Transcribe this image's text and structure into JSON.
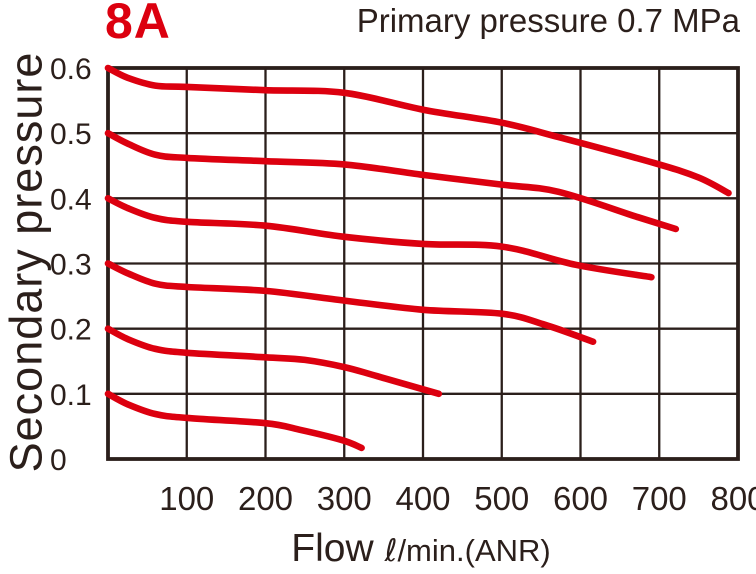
{
  "colors": {
    "ink": "#2b1f1b",
    "red": "#dc000f",
    "background": "#ffffff"
  },
  "chart_data": {
    "type": "line",
    "corner_label": "8A",
    "title": "Primary pressure 0.7 MPa",
    "ylabel": "Secondary pressure",
    "xlabel": {
      "main": "Flow",
      "symbol": "ℓ",
      "unit": "/min.(ANR)"
    },
    "xlim": [
      0,
      800
    ],
    "ylim": [
      0,
      0.6
    ],
    "grid": true,
    "legend": "none",
    "x_ticks": [
      100,
      200,
      300,
      400,
      500,
      600,
      700,
      800
    ],
    "x_tick_labels": [
      "100",
      "200",
      "300",
      "400",
      "500",
      "600",
      "700",
      "800"
    ],
    "y_ticks": [
      0.6,
      0.5,
      0.4,
      0.3,
      0.2,
      0.1,
      0
    ],
    "y_tick_labels": [
      "0.6",
      "0.5",
      "0.4",
      "0.3",
      "0.2",
      "0.1",
      "0"
    ],
    "curve_color": "#dc000f",
    "grid_color": "#2b1f1b",
    "series": [
      {
        "set": "0.6",
        "name": "set-pressure-0.6",
        "points": [
          [
            0,
            0.6
          ],
          [
            25,
            0.585
          ],
          [
            60,
            0.573
          ],
          [
            100,
            0.571
          ],
          [
            200,
            0.566
          ],
          [
            300,
            0.562
          ],
          [
            400,
            0.536
          ],
          [
            500,
            0.516
          ],
          [
            572,
            0.494
          ],
          [
            694,
            0.454
          ],
          [
            750,
            0.432
          ],
          [
            788,
            0.408
          ]
        ]
      },
      {
        "set": "0.5",
        "name": "set-pressure-0.5",
        "points": [
          [
            0,
            0.5
          ],
          [
            25,
            0.484
          ],
          [
            60,
            0.467
          ],
          [
            100,
            0.462
          ],
          [
            200,
            0.457
          ],
          [
            300,
            0.452
          ],
          [
            400,
            0.436
          ],
          [
            500,
            0.421
          ],
          [
            572,
            0.41
          ],
          [
            673,
            0.371
          ],
          [
            721,
            0.353
          ]
        ]
      },
      {
        "set": "0.4",
        "name": "set-pressure-0.4",
        "points": [
          [
            0,
            0.4
          ],
          [
            25,
            0.385
          ],
          [
            60,
            0.37
          ],
          [
            100,
            0.364
          ],
          [
            200,
            0.358
          ],
          [
            300,
            0.341
          ],
          [
            400,
            0.33
          ],
          [
            500,
            0.326
          ],
          [
            594,
            0.298
          ],
          [
            690,
            0.279
          ]
        ]
      },
      {
        "set": "0.3",
        "name": "set-pressure-0.3",
        "points": [
          [
            0,
            0.3
          ],
          [
            25,
            0.285
          ],
          [
            60,
            0.269
          ],
          [
            100,
            0.264
          ],
          [
            200,
            0.258
          ],
          [
            300,
            0.243
          ],
          [
            400,
            0.229
          ],
          [
            500,
            0.223
          ],
          [
            555,
            0.206
          ],
          [
            616,
            0.18
          ]
        ]
      },
      {
        "set": "0.2",
        "name": "set-pressure-0.2",
        "points": [
          [
            0,
            0.2
          ],
          [
            25,
            0.184
          ],
          [
            60,
            0.169
          ],
          [
            100,
            0.163
          ],
          [
            200,
            0.156
          ],
          [
            250,
            0.152
          ],
          [
            300,
            0.141
          ],
          [
            342,
            0.127
          ],
          [
            420,
            0.1
          ]
        ]
      },
      {
        "set": "0.1",
        "name": "set-pressure-0.1",
        "points": [
          [
            0,
            0.1
          ],
          [
            25,
            0.084
          ],
          [
            60,
            0.069
          ],
          [
            100,
            0.063
          ],
          [
            200,
            0.055
          ],
          [
            243,
            0.045
          ],
          [
            297,
            0.029
          ],
          [
            322,
            0.017
          ]
        ]
      }
    ]
  }
}
